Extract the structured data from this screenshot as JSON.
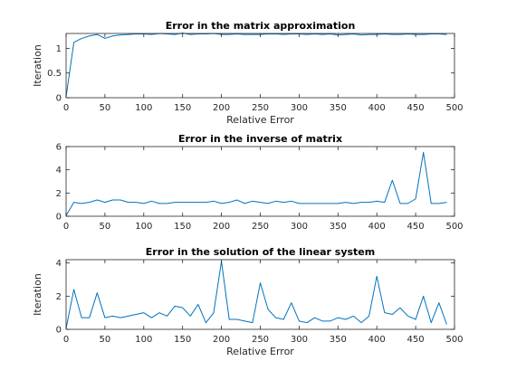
{
  "chart_data": [
    {
      "type": "line",
      "title": "Error in the matrix approximation",
      "xlabel": "Relative Error",
      "ylabel": "Iteration",
      "xlim": [
        0,
        500
      ],
      "ylim": [
        0,
        1.3
      ],
      "xticks": [
        0,
        50,
        100,
        150,
        200,
        250,
        300,
        350,
        400,
        450,
        500
      ],
      "yticks": [
        0,
        0.5,
        1
      ],
      "grid": false,
      "color": "#0072bd",
      "series": [
        {
          "x": [
            0,
            10,
            20,
            30,
            40,
            50,
            60,
            70,
            80,
            90,
            100,
            110,
            120,
            130,
            140,
            150,
            160,
            170,
            180,
            190,
            200,
            210,
            220,
            230,
            240,
            250,
            260,
            270,
            280,
            290,
            300,
            310,
            320,
            330,
            340,
            350,
            360,
            370,
            380,
            390,
            400,
            410,
            420,
            430,
            440,
            450,
            460,
            470,
            480,
            490
          ],
          "y": [
            0.02,
            1.12,
            1.2,
            1.25,
            1.28,
            1.2,
            1.25,
            1.27,
            1.28,
            1.29,
            1.29,
            1.28,
            1.3,
            1.29,
            1.28,
            1.31,
            1.28,
            1.29,
            1.29,
            1.3,
            1.28,
            1.28,
            1.29,
            1.28,
            1.28,
            1.28,
            1.29,
            1.29,
            1.28,
            1.29,
            1.29,
            1.28,
            1.29,
            1.28,
            1.29,
            1.27,
            1.28,
            1.29,
            1.27,
            1.28,
            1.28,
            1.29,
            1.28,
            1.28,
            1.29,
            1.28,
            1.28,
            1.29,
            1.29,
            1.28
          ]
        }
      ]
    },
    {
      "type": "line",
      "title": "Error in the inverse of matrix",
      "xlabel": "",
      "ylabel": "",
      "xlim": [
        0,
        500
      ],
      "ylim": [
        0,
        6
      ],
      "xticks": [
        0,
        50,
        100,
        150,
        200,
        250,
        300,
        350,
        400,
        450,
        500
      ],
      "yticks": [
        0,
        2,
        4,
        6
      ],
      "grid": false,
      "color": "#0072bd",
      "series": [
        {
          "x": [
            0,
            10,
            20,
            30,
            40,
            50,
            60,
            70,
            80,
            90,
            100,
            110,
            120,
            130,
            140,
            150,
            160,
            170,
            180,
            190,
            200,
            210,
            220,
            230,
            240,
            250,
            260,
            270,
            280,
            290,
            300,
            310,
            320,
            330,
            340,
            350,
            360,
            370,
            380,
            390,
            400,
            410,
            420,
            430,
            440,
            450,
            460,
            470,
            480,
            490
          ],
          "y": [
            0.05,
            1.2,
            1.1,
            1.2,
            1.4,
            1.2,
            1.4,
            1.4,
            1.2,
            1.2,
            1.1,
            1.3,
            1.1,
            1.1,
            1.2,
            1.2,
            1.2,
            1.2,
            1.2,
            1.3,
            1.1,
            1.2,
            1.4,
            1.1,
            1.3,
            1.2,
            1.1,
            1.3,
            1.2,
            1.3,
            1.1,
            1.1,
            1.1,
            1.1,
            1.1,
            1.1,
            1.2,
            1.1,
            1.2,
            1.2,
            1.3,
            1.2,
            3.1,
            1.1,
            1.1,
            1.5,
            5.5,
            1.1,
            1.1,
            1.2
          ]
        }
      ]
    },
    {
      "type": "line",
      "title": "Error in the solution of the linear system",
      "xlabel": "Relative Error",
      "ylabel": "Iteration",
      "xlim": [
        0,
        500
      ],
      "ylim": [
        0,
        4.2
      ],
      "xticks": [
        0,
        50,
        100,
        150,
        200,
        250,
        300,
        350,
        400,
        450,
        500
      ],
      "yticks": [
        0,
        2,
        4
      ],
      "grid": false,
      "color": "#0072bd",
      "series": [
        {
          "x": [
            0,
            10,
            20,
            30,
            40,
            50,
            60,
            70,
            80,
            90,
            100,
            110,
            120,
            130,
            140,
            150,
            160,
            170,
            180,
            190,
            200,
            210,
            220,
            230,
            240,
            250,
            260,
            270,
            280,
            290,
            300,
            310,
            320,
            330,
            340,
            350,
            360,
            370,
            380,
            390,
            400,
            410,
            420,
            430,
            440,
            450,
            460,
            470,
            480,
            490
          ],
          "y": [
            0.05,
            2.4,
            0.7,
            0.7,
            2.2,
            0.7,
            0.8,
            0.7,
            0.8,
            0.9,
            1.0,
            0.7,
            1.0,
            0.8,
            1.4,
            1.3,
            0.8,
            1.5,
            0.4,
            1.0,
            4.1,
            0.6,
            0.6,
            0.5,
            0.4,
            2.8,
            1.2,
            0.7,
            0.6,
            1.6,
            0.5,
            0.4,
            0.7,
            0.5,
            0.5,
            0.7,
            0.6,
            0.8,
            0.4,
            0.8,
            3.2,
            1.0,
            0.9,
            1.3,
            0.8,
            0.6,
            2.0,
            0.4,
            1.6,
            0.3
          ]
        }
      ]
    }
  ]
}
